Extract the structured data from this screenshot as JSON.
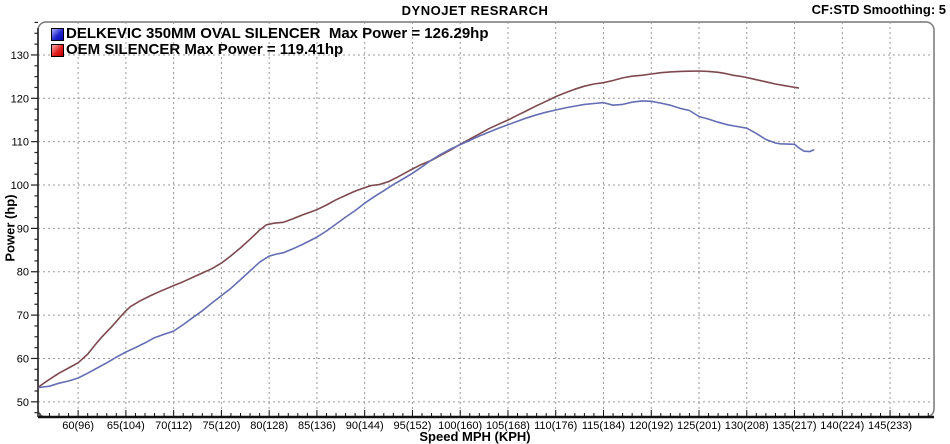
{
  "header": {
    "title": "DYNOJET RESRARCH",
    "smoothing": "CF:STD Smoothing: 5"
  },
  "legend": {
    "items": [
      {
        "swatch": "blue-swatch",
        "color_hint": "#2026cc",
        "label": "DELKEVIC 350MM OVAL SILENCER  Max Power = 126.29hp"
      },
      {
        "swatch": "red-swatch",
        "color_hint": "#e02020",
        "label": "OEM SILENCER Max Power = 119.41hp"
      }
    ]
  },
  "axes": {
    "ylabel": "Power (hp)",
    "xlabel": "Speed MPH (KPH)"
  },
  "chart_data": {
    "type": "line",
    "title": "DYNOJET RESRARCH",
    "xlabel": "Speed MPH (KPH)",
    "ylabel": "Power (hp)",
    "xlim": [
      55.8,
      149.6
    ],
    "ylim": [
      46.5,
      137.6
    ],
    "grid": "dashed",
    "legend_position": "top-left-inside",
    "x_ticks": [
      {
        "v": 60,
        "label": "60(96)"
      },
      {
        "v": 65,
        "label": "65(104)"
      },
      {
        "v": 70,
        "label": "70(112)"
      },
      {
        "v": 75,
        "label": "75(120)"
      },
      {
        "v": 80,
        "label": "80(128)"
      },
      {
        "v": 85,
        "label": "85(136)"
      },
      {
        "v": 90,
        "label": "90(144)"
      },
      {
        "v": 95,
        "label": "95(152)"
      },
      {
        "v": 100,
        "label": "100(160)"
      },
      {
        "v": 105,
        "label": "105(168)"
      },
      {
        "v": 110,
        "label": "110(176)"
      },
      {
        "v": 115,
        "label": "115(184)"
      },
      {
        "v": 120,
        "label": "120(192)"
      },
      {
        "v": 125,
        "label": "125(201)"
      },
      {
        "v": 130,
        "label": "130(208)"
      },
      {
        "v": 135,
        "label": "135(217)"
      },
      {
        "v": 140,
        "label": "140(224)"
      },
      {
        "v": 145,
        "label": "145(233)"
      }
    ],
    "y_ticks": [
      50,
      60,
      70,
      80,
      90,
      100,
      110,
      120,
      130
    ],
    "x_minor_step": 1,
    "y_minor_step": 2.5,
    "series": [
      {
        "name": "DELKEVIC 350MM OVAL SILENCER",
        "max_power_hp": 126.29,
        "color": "#7e494e",
        "points": [
          [
            55.9,
            53.5
          ],
          [
            57,
            55.2
          ],
          [
            58,
            56.6
          ],
          [
            59,
            57.8
          ],
          [
            60,
            59.0
          ],
          [
            61,
            61.0
          ],
          [
            61.8,
            63.2
          ],
          [
            62.5,
            65.0
          ],
          [
            63.5,
            67.3
          ],
          [
            64.5,
            69.8
          ],
          [
            65,
            71.0
          ],
          [
            65.5,
            72.0
          ],
          [
            66.5,
            73.3
          ],
          [
            67.5,
            74.4
          ],
          [
            68.5,
            75.4
          ],
          [
            70,
            76.8
          ],
          [
            71,
            77.7
          ],
          [
            72,
            78.7
          ],
          [
            73,
            79.7
          ],
          [
            74,
            80.7
          ],
          [
            75,
            82.0
          ],
          [
            76,
            83.7
          ],
          [
            77,
            85.5
          ],
          [
            78,
            87.5
          ],
          [
            79,
            89.6
          ],
          [
            79.7,
            90.8
          ],
          [
            80.5,
            91.2
          ],
          [
            81.5,
            91.4
          ],
          [
            82.5,
            92.2
          ],
          [
            83.5,
            93.1
          ],
          [
            85,
            94.3
          ],
          [
            86,
            95.4
          ],
          [
            87,
            96.6
          ],
          [
            88,
            97.6
          ],
          [
            89,
            98.6
          ],
          [
            90,
            99.4
          ],
          [
            90.7,
            99.9
          ],
          [
            91.5,
            100.1
          ],
          [
            92.5,
            100.8
          ],
          [
            93.5,
            101.9
          ],
          [
            94.5,
            103.1
          ],
          [
            95,
            103.7
          ],
          [
            96,
            104.8
          ],
          [
            97,
            105.7
          ],
          [
            98,
            106.9
          ],
          [
            99,
            108.1
          ],
          [
            100,
            109.4
          ],
          [
            101,
            110.6
          ],
          [
            102,
            111.8
          ],
          [
            103,
            113.0
          ],
          [
            104,
            114.0
          ],
          [
            105,
            115.0
          ],
          [
            106,
            116.1
          ],
          [
            107,
            117.2
          ],
          [
            108,
            118.3
          ],
          [
            109,
            119.3
          ],
          [
            110,
            120.4
          ],
          [
            111,
            121.3
          ],
          [
            112,
            122.1
          ],
          [
            113,
            122.8
          ],
          [
            114,
            123.3
          ],
          [
            115,
            123.6
          ],
          [
            116,
            124.1
          ],
          [
            117,
            124.7
          ],
          [
            118,
            125.1
          ],
          [
            119,
            125.3
          ],
          [
            120,
            125.6
          ],
          [
            121,
            125.9
          ],
          [
            122,
            126.1
          ],
          [
            123,
            126.2
          ],
          [
            124,
            126.25
          ],
          [
            125,
            126.29
          ],
          [
            126,
            126.2
          ],
          [
            127,
            126.0
          ],
          [
            127.8,
            125.7
          ],
          [
            128.6,
            125.3
          ],
          [
            129.5,
            125.0
          ],
          [
            130,
            124.8
          ],
          [
            131,
            124.3
          ],
          [
            132,
            123.8
          ],
          [
            133,
            123.3
          ],
          [
            134,
            122.9
          ],
          [
            134.8,
            122.6
          ],
          [
            135.4,
            122.4
          ]
        ]
      },
      {
        "name": "OEM SILENCER",
        "max_power_hp": 119.41,
        "color": "#646eb4",
        "points": [
          [
            55.9,
            53.3
          ],
          [
            57,
            53.6
          ],
          [
            58,
            54.3
          ],
          [
            59,
            54.8
          ],
          [
            60,
            55.5
          ],
          [
            61,
            56.6
          ],
          [
            62,
            57.8
          ],
          [
            63,
            59.0
          ],
          [
            64,
            60.3
          ],
          [
            65,
            61.5
          ],
          [
            66,
            62.5
          ],
          [
            67,
            63.6
          ],
          [
            68,
            64.8
          ],
          [
            69,
            65.6
          ],
          [
            70,
            66.3
          ],
          [
            71,
            67.8
          ],
          [
            72,
            69.4
          ],
          [
            73,
            71.0
          ],
          [
            74,
            72.8
          ],
          [
            75,
            74.5
          ],
          [
            76,
            76.2
          ],
          [
            77,
            78.2
          ],
          [
            78,
            80.2
          ],
          [
            79,
            82.2
          ],
          [
            80,
            83.6
          ],
          [
            80.8,
            84.1
          ],
          [
            81.5,
            84.4
          ],
          [
            82.5,
            85.3
          ],
          [
            83.5,
            86.3
          ],
          [
            85,
            88.0
          ],
          [
            86,
            89.4
          ],
          [
            87,
            91.0
          ],
          [
            88,
            92.6
          ],
          [
            89,
            94.1
          ],
          [
            90,
            95.8
          ],
          [
            91,
            97.3
          ],
          [
            92,
            98.7
          ],
          [
            93,
            100.1
          ],
          [
            94,
            101.4
          ],
          [
            95,
            102.7
          ],
          [
            96,
            104.2
          ],
          [
            97,
            105.8
          ],
          [
            98,
            107.1
          ],
          [
            99,
            108.3
          ],
          [
            100,
            109.3
          ],
          [
            101,
            110.3
          ],
          [
            102,
            111.3
          ],
          [
            103,
            112.2
          ],
          [
            104,
            113.1
          ],
          [
            105,
            113.9
          ],
          [
            106,
            114.7
          ],
          [
            107,
            115.5
          ],
          [
            108,
            116.2
          ],
          [
            109,
            116.8
          ],
          [
            110,
            117.3
          ],
          [
            111,
            117.8
          ],
          [
            112,
            118.2
          ],
          [
            113,
            118.6
          ],
          [
            114,
            118.8
          ],
          [
            115,
            119.0
          ],
          [
            116,
            118.4
          ],
          [
            117,
            118.6
          ],
          [
            118,
            119.1
          ],
          [
            119,
            119.4
          ],
          [
            120,
            119.3
          ],
          [
            121,
            118.9
          ],
          [
            122,
            118.4
          ],
          [
            123,
            117.7
          ],
          [
            124,
            117.2
          ],
          [
            125,
            115.8
          ],
          [
            126,
            115.2
          ],
          [
            127,
            114.5
          ],
          [
            128,
            113.9
          ],
          [
            129,
            113.5
          ],
          [
            130,
            113.1
          ],
          [
            131,
            111.9
          ],
          [
            132,
            110.5
          ],
          [
            133,
            109.7
          ],
          [
            133.5,
            109.5
          ],
          [
            135,
            109.4
          ],
          [
            135.5,
            108.5
          ],
          [
            136,
            107.8
          ],
          [
            136.6,
            107.7
          ],
          [
            137,
            108.1
          ]
        ]
      }
    ]
  }
}
